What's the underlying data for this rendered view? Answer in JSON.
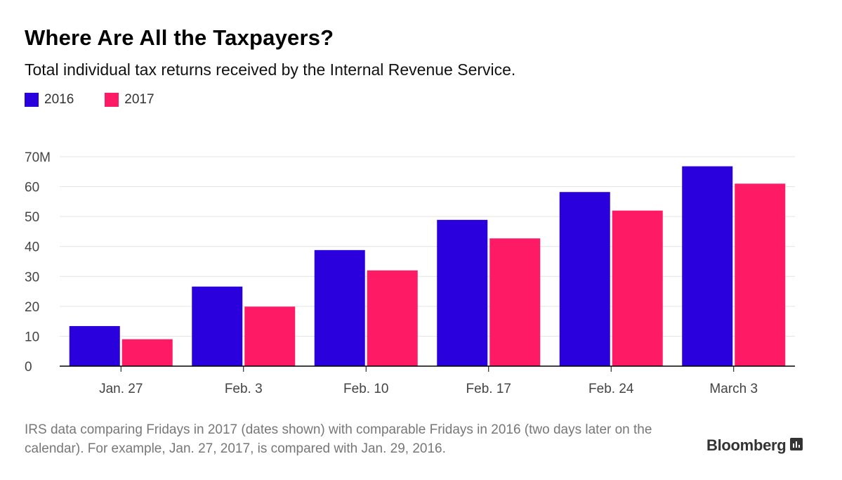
{
  "header": {
    "title": "Where Are All the Taxpayers?",
    "subtitle": "Total individual tax returns received by the Internal Revenue Service."
  },
  "legend": [
    {
      "label": "2016",
      "color": "#2a00dc"
    },
    {
      "label": "2017",
      "color": "#ff1a66"
    }
  ],
  "footer": {
    "note": "IRS data comparing Fridays in 2017 (dates shown) with comparable Fridays in 2016 (two days later on the calendar). For example, Jan. 27, 2017, is compared with Jan. 29, 2016.",
    "brand": "Bloomberg",
    "brand_icon": "bloomberg-terminal-icon"
  },
  "chart_data": {
    "type": "bar",
    "categories": [
      "Jan. 27",
      "Feb. 3",
      "Feb. 10",
      "Feb. 17",
      "Feb. 24",
      "March 3"
    ],
    "series": [
      {
        "name": "2016",
        "color": "#2a00dc",
        "values": [
          13.4,
          26.6,
          38.8,
          48.9,
          58.2,
          66.8
        ]
      },
      {
        "name": "2017",
        "color": "#ff1a66",
        "values": [
          9.0,
          19.9,
          32.0,
          42.7,
          52.0,
          61.0
        ]
      }
    ],
    "ylim": [
      0,
      70
    ],
    "yticks": [
      0,
      10,
      20,
      30,
      40,
      50,
      60,
      70
    ],
    "ytick_labels": [
      "0",
      "10",
      "20",
      "30",
      "40",
      "50",
      "60",
      "70M"
    ],
    "grid": true,
    "legend_position": "top-left"
  }
}
